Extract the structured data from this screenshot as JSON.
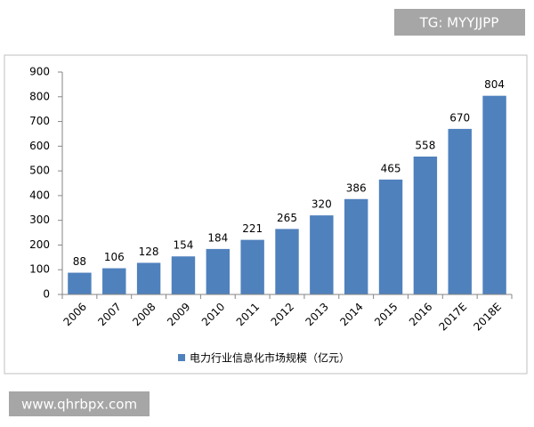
{
  "watermarks": [
    "TG: MYYJJPP",
    "www.qhrbpx.com"
  ],
  "chart_data": {
    "type": "bar",
    "categories": [
      "2006",
      "2007",
      "2008",
      "2009",
      "2010",
      "2011",
      "2012",
      "2013",
      "2014",
      "2015",
      "2016",
      "2017E",
      "2018E"
    ],
    "series": [
      {
        "name": "电力行业信息化市场规模（亿元）",
        "color": "#4f81bd",
        "values": [
          88,
          106,
          128,
          154,
          184,
          221,
          265,
          320,
          386,
          465,
          558,
          670,
          804
        ]
      }
    ],
    "ylim": [
      0,
      900
    ],
    "yticks": [
      0,
      100,
      200,
      300,
      400,
      500,
      600,
      700,
      800,
      900
    ],
    "grid": false,
    "legend": "bottom"
  }
}
